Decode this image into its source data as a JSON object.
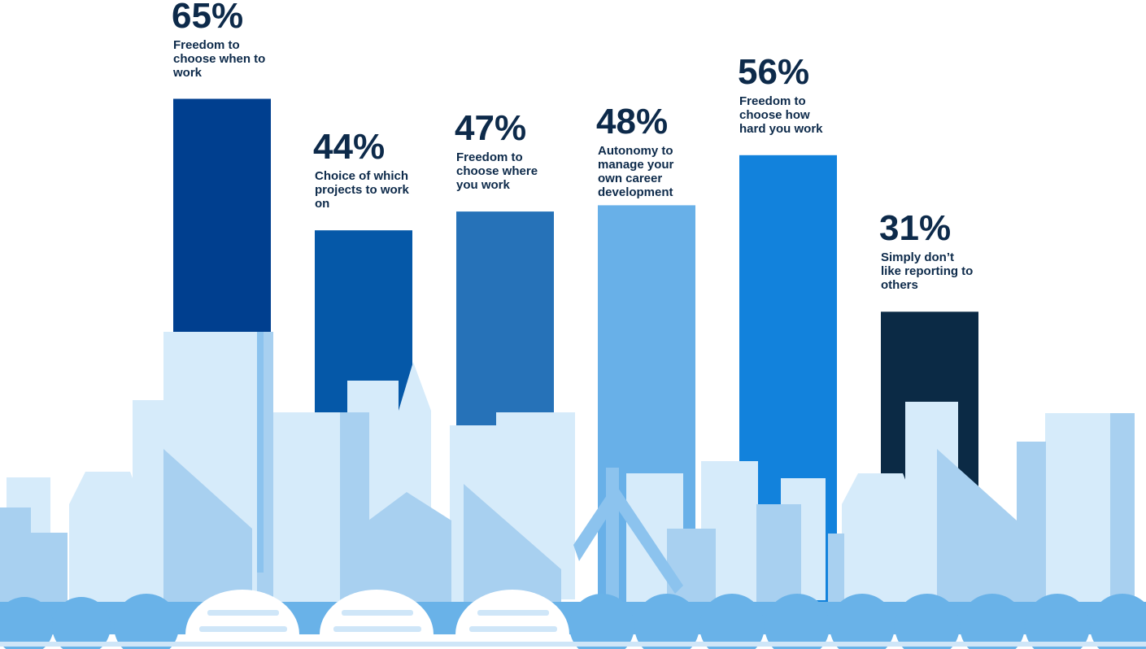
{
  "chart_data": {
    "type": "bar",
    "categories": [
      "Freedom to choose when to work",
      "Choice of which projects to work on",
      "Freedom to choose where you work",
      "Autonomy to manage your own career development",
      "Freedom to choose how hard you work",
      "Simply don’t like reporting to others"
    ],
    "values": [
      65,
      44,
      47,
      48,
      56,
      31
    ],
    "value_labels": [
      "65%",
      "44%",
      "47%",
      "48%",
      "56%",
      "31%"
    ],
    "colors": [
      "#003f8f",
      "#0558a8",
      "#2672b8",
      "#68b0e8",
      "#1282dc",
      "#0b2a45"
    ]
  }
}
